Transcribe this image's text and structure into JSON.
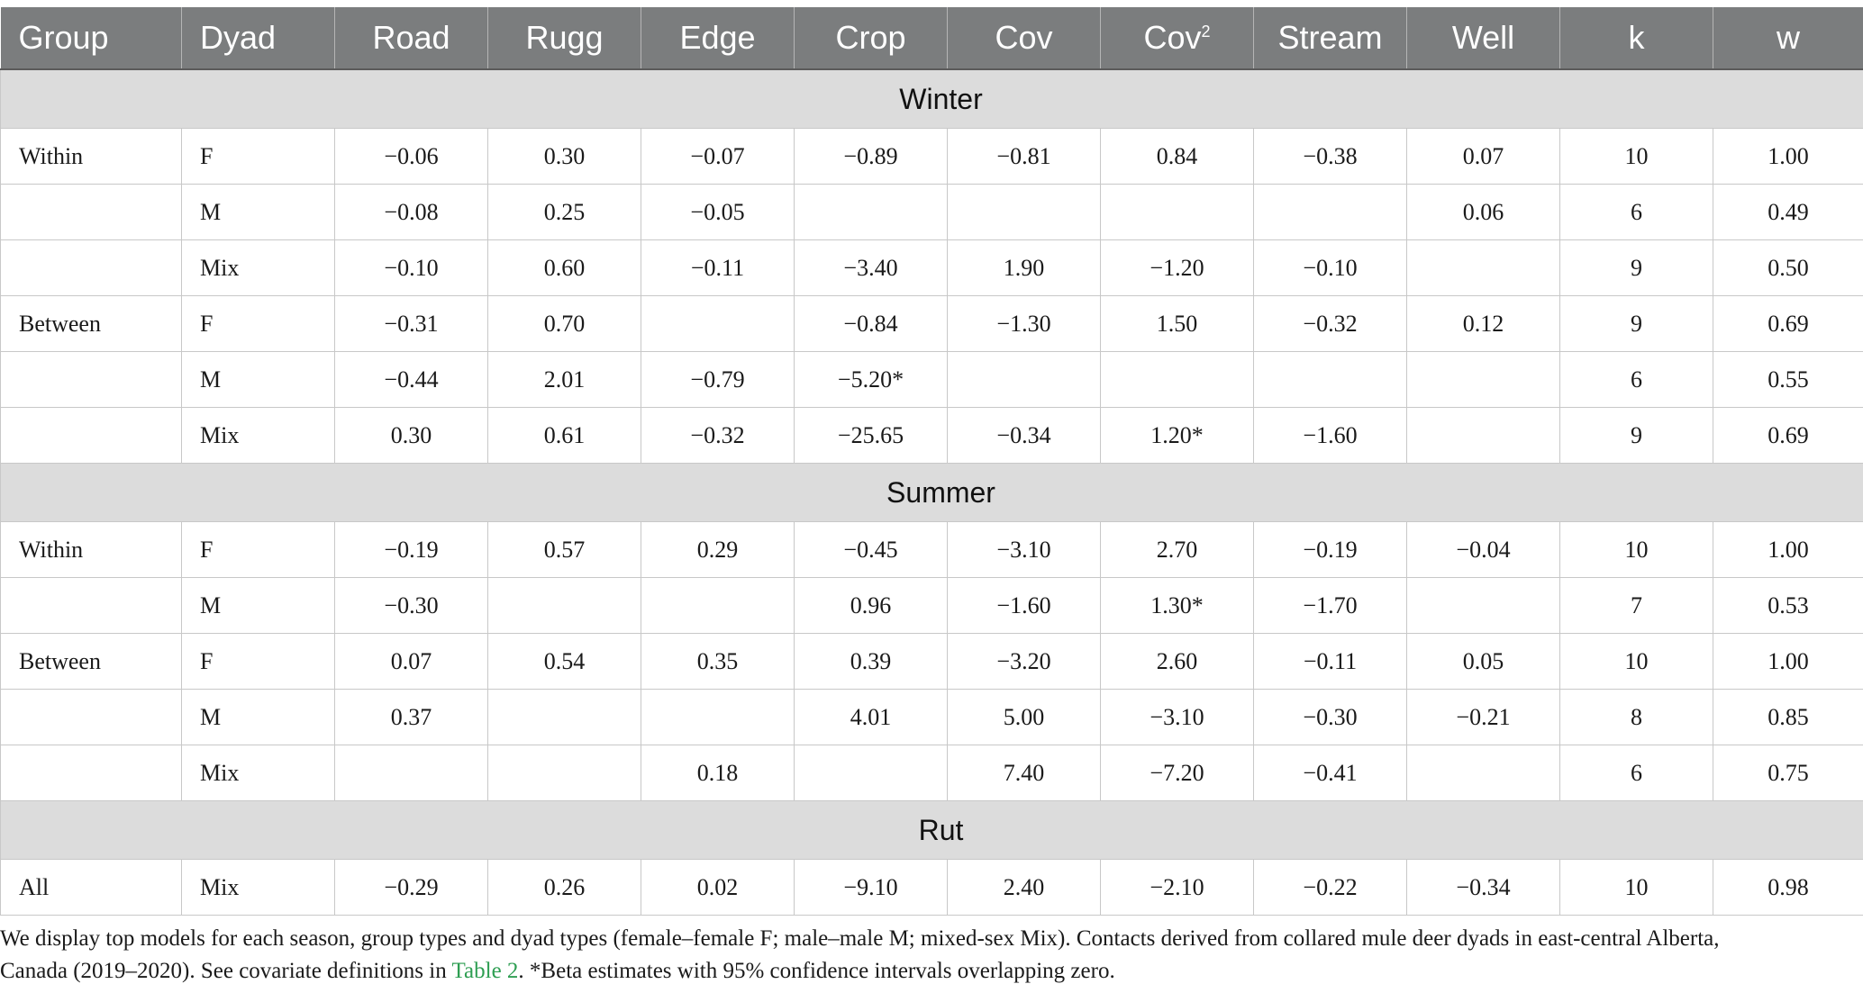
{
  "headers": [
    "Group",
    "Dyad",
    "Road",
    "Rugg",
    "Edge",
    "Crop",
    "Cov",
    "Cov",
    "Stream",
    "Well",
    "k",
    "w"
  ],
  "cov2_superscript": "2",
  "sections": [
    {
      "season": "Winter",
      "rows": [
        [
          "Within",
          "F",
          "−0.06",
          "0.30",
          "−0.07",
          "−0.89",
          "−0.81",
          "0.84",
          "−0.38",
          "0.07",
          "10",
          "1.00"
        ],
        [
          "",
          "M",
          "−0.08",
          "0.25",
          "−0.05",
          "",
          "",
          "",
          "",
          "0.06",
          "6",
          "0.49"
        ],
        [
          "",
          "Mix",
          "−0.10",
          "0.60",
          "−0.11",
          "−3.40",
          "1.90",
          "−1.20",
          "−0.10",
          "",
          "9",
          "0.50"
        ],
        [
          "Between",
          "F",
          "−0.31",
          "0.70",
          "",
          "−0.84",
          "−1.30",
          "1.50",
          "−0.32",
          "0.12",
          "9",
          "0.69"
        ],
        [
          "",
          "M",
          "−0.44",
          "2.01",
          "−0.79",
          "−5.20*",
          "",
          "",
          "",
          "",
          "6",
          "0.55"
        ],
        [
          "",
          "Mix",
          "0.30",
          "0.61",
          "−0.32",
          "−25.65",
          "−0.34",
          "1.20*",
          "−1.60",
          "",
          "9",
          "0.69"
        ]
      ]
    },
    {
      "season": "Summer",
      "rows": [
        [
          "Within",
          "F",
          "−0.19",
          "0.57",
          "0.29",
          "−0.45",
          "−3.10",
          "2.70",
          "−0.19",
          "−0.04",
          "10",
          "1.00"
        ],
        [
          "",
          "M",
          "−0.30",
          "",
          "",
          "0.96",
          "−1.60",
          "1.30*",
          "−1.70",
          "",
          "7",
          "0.53"
        ],
        [
          "Between",
          "F",
          "0.07",
          "0.54",
          "0.35",
          "0.39",
          "−3.20",
          "2.60",
          "−0.11",
          "0.05",
          "10",
          "1.00"
        ],
        [
          "",
          "M",
          "0.37",
          "",
          "",
          "4.01",
          "5.00",
          "−3.10",
          "−0.30",
          "−0.21",
          "8",
          "0.85"
        ],
        [
          "",
          "Mix",
          "",
          "",
          "0.18",
          "",
          "7.40",
          "−7.20",
          "−0.41",
          "",
          "6",
          "0.75"
        ]
      ]
    },
    {
      "season": "Rut",
      "rows": [
        [
          "All",
          "Mix",
          "−0.29",
          "0.26",
          "0.02",
          "−9.10",
          "2.40",
          "−2.10",
          "−0.22",
          "−0.34",
          "10",
          "0.98"
        ]
      ]
    }
  ],
  "footnote": {
    "line1": "We display top models for each season, group types and dyad types (female–female F; male–male M; mixed-sex Mix). Contacts derived from collared mule deer dyads in east-central Alberta,",
    "line2_before": "Canada (2019–2020). See covariate definitions in ",
    "link": "Table 2",
    "line2_after": ". *Beta estimates with 95% confidence intervals overlapping zero."
  }
}
